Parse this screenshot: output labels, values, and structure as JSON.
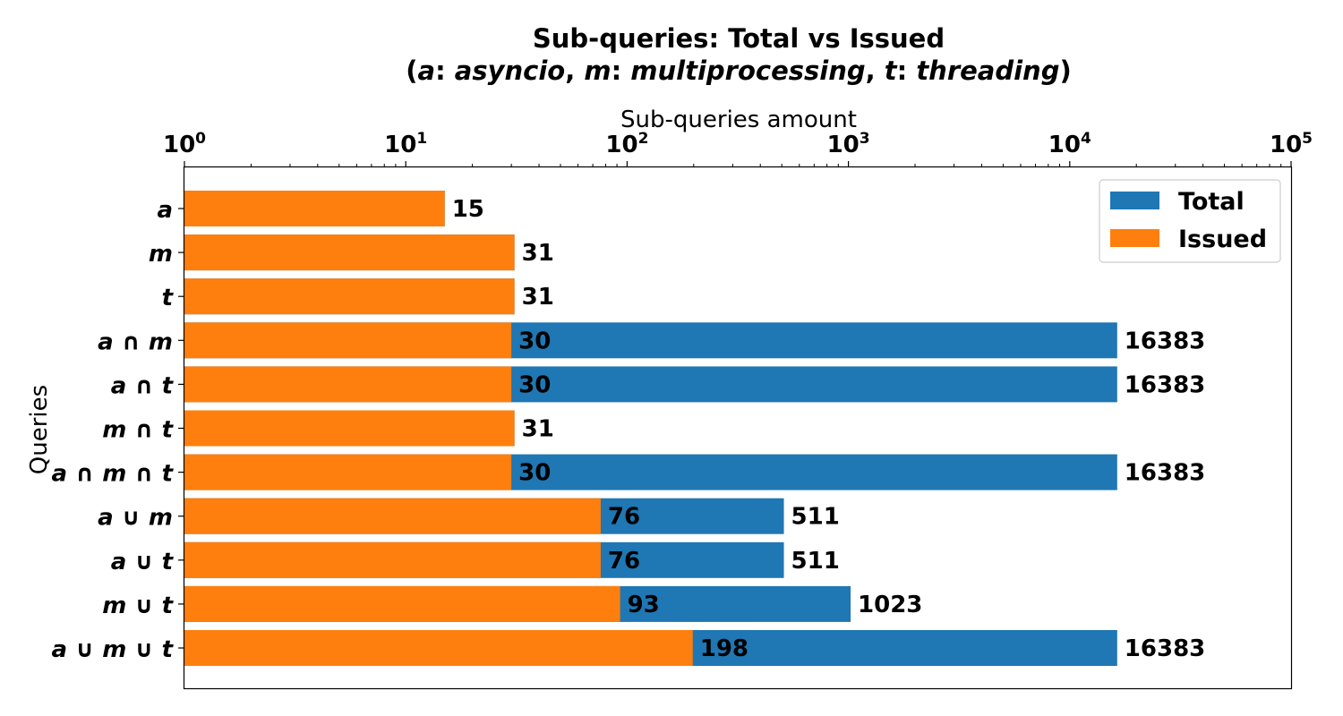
{
  "chart_data": {
    "type": "bar",
    "orientation": "horizontal",
    "title": "Sub-queries: Total vs Issued",
    "subtitle": {
      "open": "(",
      "parts": [
        {
          "sym": "a",
          "sep": ": ",
          "word": "asyncio"
        },
        {
          "sym": "m",
          "sep": ": ",
          "word": "multiprocessing"
        },
        {
          "sym": "t",
          "sep": ": ",
          "word": "threading"
        }
      ],
      "joiner": ", ",
      "close": ")"
    },
    "xlabel": "Sub-queries amount",
    "ylabel": "Queries",
    "x_scale": "log",
    "x_axis_position": "top",
    "xlim": [
      1,
      100000
    ],
    "x_ticks": [
      {
        "base": "10",
        "exp": "0",
        "value": 1
      },
      {
        "base": "10",
        "exp": "1",
        "value": 10
      },
      {
        "base": "10",
        "exp": "2",
        "value": 100
      },
      {
        "base": "10",
        "exp": "3",
        "value": 1000
      },
      {
        "base": "10",
        "exp": "4",
        "value": 10000
      },
      {
        "base": "10",
        "exp": "5",
        "value": 100000
      }
    ],
    "grid": false,
    "legend_position": "top-right",
    "categories": [
      [
        "a"
      ],
      [
        "m"
      ],
      [
        "t"
      ],
      [
        "a",
        " ∩ ",
        "m"
      ],
      [
        "a",
        " ∩ ",
        "t"
      ],
      [
        "m",
        " ∩ ",
        "t"
      ],
      [
        "a",
        " ∩ ",
        "m",
        " ∩ ",
        "t"
      ],
      [
        "a",
        " ∪ ",
        "m"
      ],
      [
        "a",
        " ∪ ",
        "t"
      ],
      [
        "m",
        " ∪ ",
        "t"
      ],
      [
        "a",
        " ∪ ",
        "m",
        " ∪ ",
        "t"
      ]
    ],
    "series": [
      {
        "name": "Total",
        "color": "#1f77b4",
        "values": [
          15,
          31,
          31,
          16383,
          16383,
          31,
          16383,
          511,
          511,
          1023,
          16383
        ],
        "labels": [
          "",
          "",
          "",
          "16383",
          "16383",
          "",
          "16383",
          "511",
          "511",
          "1023",
          "16383"
        ]
      },
      {
        "name": "Issued",
        "color": "#ff7f0e",
        "values": [
          15,
          31,
          31,
          30,
          30,
          31,
          30,
          76,
          76,
          93,
          198
        ],
        "labels": [
          "15",
          "31",
          "31",
          "30",
          "30",
          "31",
          "30",
          "76",
          "76",
          "93",
          "198"
        ]
      }
    ]
  }
}
